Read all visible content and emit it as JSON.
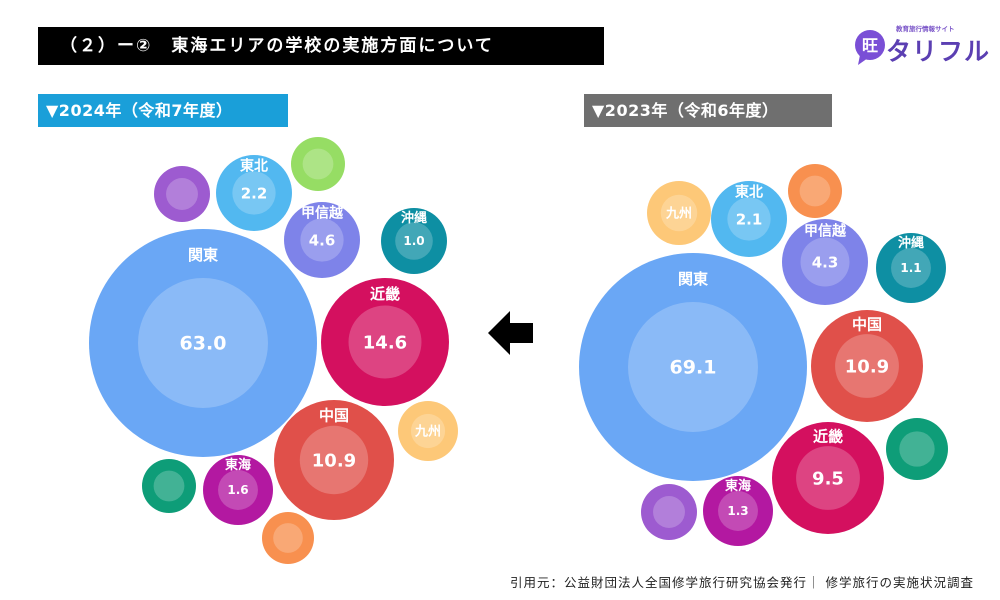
{
  "header": {
    "title": "（２）ー②　東海エリアの学校の実施方面について"
  },
  "logo": {
    "tagline": "教育旅行情報サイト",
    "name": "タリフル",
    "mark_letter": "旺"
  },
  "arrow": {
    "icon": "left-arrow-icon"
  },
  "source": "引用元：公益財団法人全国修学旅行研究協会発行｜ 修学旅行の実施状況調査",
  "chart_data": [
    {
      "type": "bubble",
      "title": "▼2024年（令和7年度）",
      "unit": "%",
      "data": [
        {
          "region": "関東",
          "value": 63.0,
          "label": "63.0",
          "color": "#6aa7f5"
        },
        {
          "region": "近畿",
          "value": 14.6,
          "label": "14.6",
          "color": "#d4105f"
        },
        {
          "region": "中国",
          "value": 10.9,
          "label": "10.9",
          "color": "#e0504a"
        },
        {
          "region": "甲信越",
          "value": 4.6,
          "label": "4.6",
          "color": "#7e83e9"
        },
        {
          "region": "東北",
          "value": 2.2,
          "label": "2.2",
          "color": "#52b8f0"
        },
        {
          "region": "東海",
          "value": 1.6,
          "label": "1.6",
          "color": "#b318a1"
        },
        {
          "region": "沖縄",
          "value": 1.0,
          "label": "1.0",
          "color": "#0e8fa3"
        },
        {
          "region": "九州",
          "value": null,
          "label": "",
          "color": "#fdc878"
        },
        {
          "region": "",
          "value": null,
          "label": "",
          "color": "#9d5bd0"
        },
        {
          "region": "",
          "value": null,
          "label": "",
          "color": "#96dd64"
        },
        {
          "region": "",
          "value": null,
          "label": "",
          "color": "#0e9d78"
        },
        {
          "region": "",
          "value": null,
          "label": "",
          "color": "#f8904f"
        }
      ]
    },
    {
      "type": "bubble",
      "title": "▼2023年（令和6年度）",
      "unit": "%",
      "data": [
        {
          "region": "関東",
          "value": 69.1,
          "label": "69.1",
          "color": "#6aa7f5"
        },
        {
          "region": "中国",
          "value": 10.9,
          "label": "10.9",
          "color": "#e0504a"
        },
        {
          "region": "近畿",
          "value": 9.5,
          "label": "9.5",
          "color": "#d4105f"
        },
        {
          "region": "甲信越",
          "value": 4.3,
          "label": "4.3",
          "color": "#7e83e9"
        },
        {
          "region": "東北",
          "value": 2.1,
          "label": "2.1",
          "color": "#52b8f0"
        },
        {
          "region": "東海",
          "value": 1.3,
          "label": "1.3",
          "color": "#b318a1"
        },
        {
          "region": "沖縄",
          "value": 1.1,
          "label": "1.1",
          "color": "#0e8fa3"
        },
        {
          "region": "九州",
          "value": null,
          "label": "",
          "color": "#fdc878"
        },
        {
          "region": "",
          "value": null,
          "label": "",
          "color": "#f8904f"
        },
        {
          "region": "",
          "value": null,
          "label": "",
          "color": "#0e9d78"
        },
        {
          "region": "",
          "value": null,
          "label": "",
          "color": "#9d5bd0"
        }
      ]
    }
  ]
}
